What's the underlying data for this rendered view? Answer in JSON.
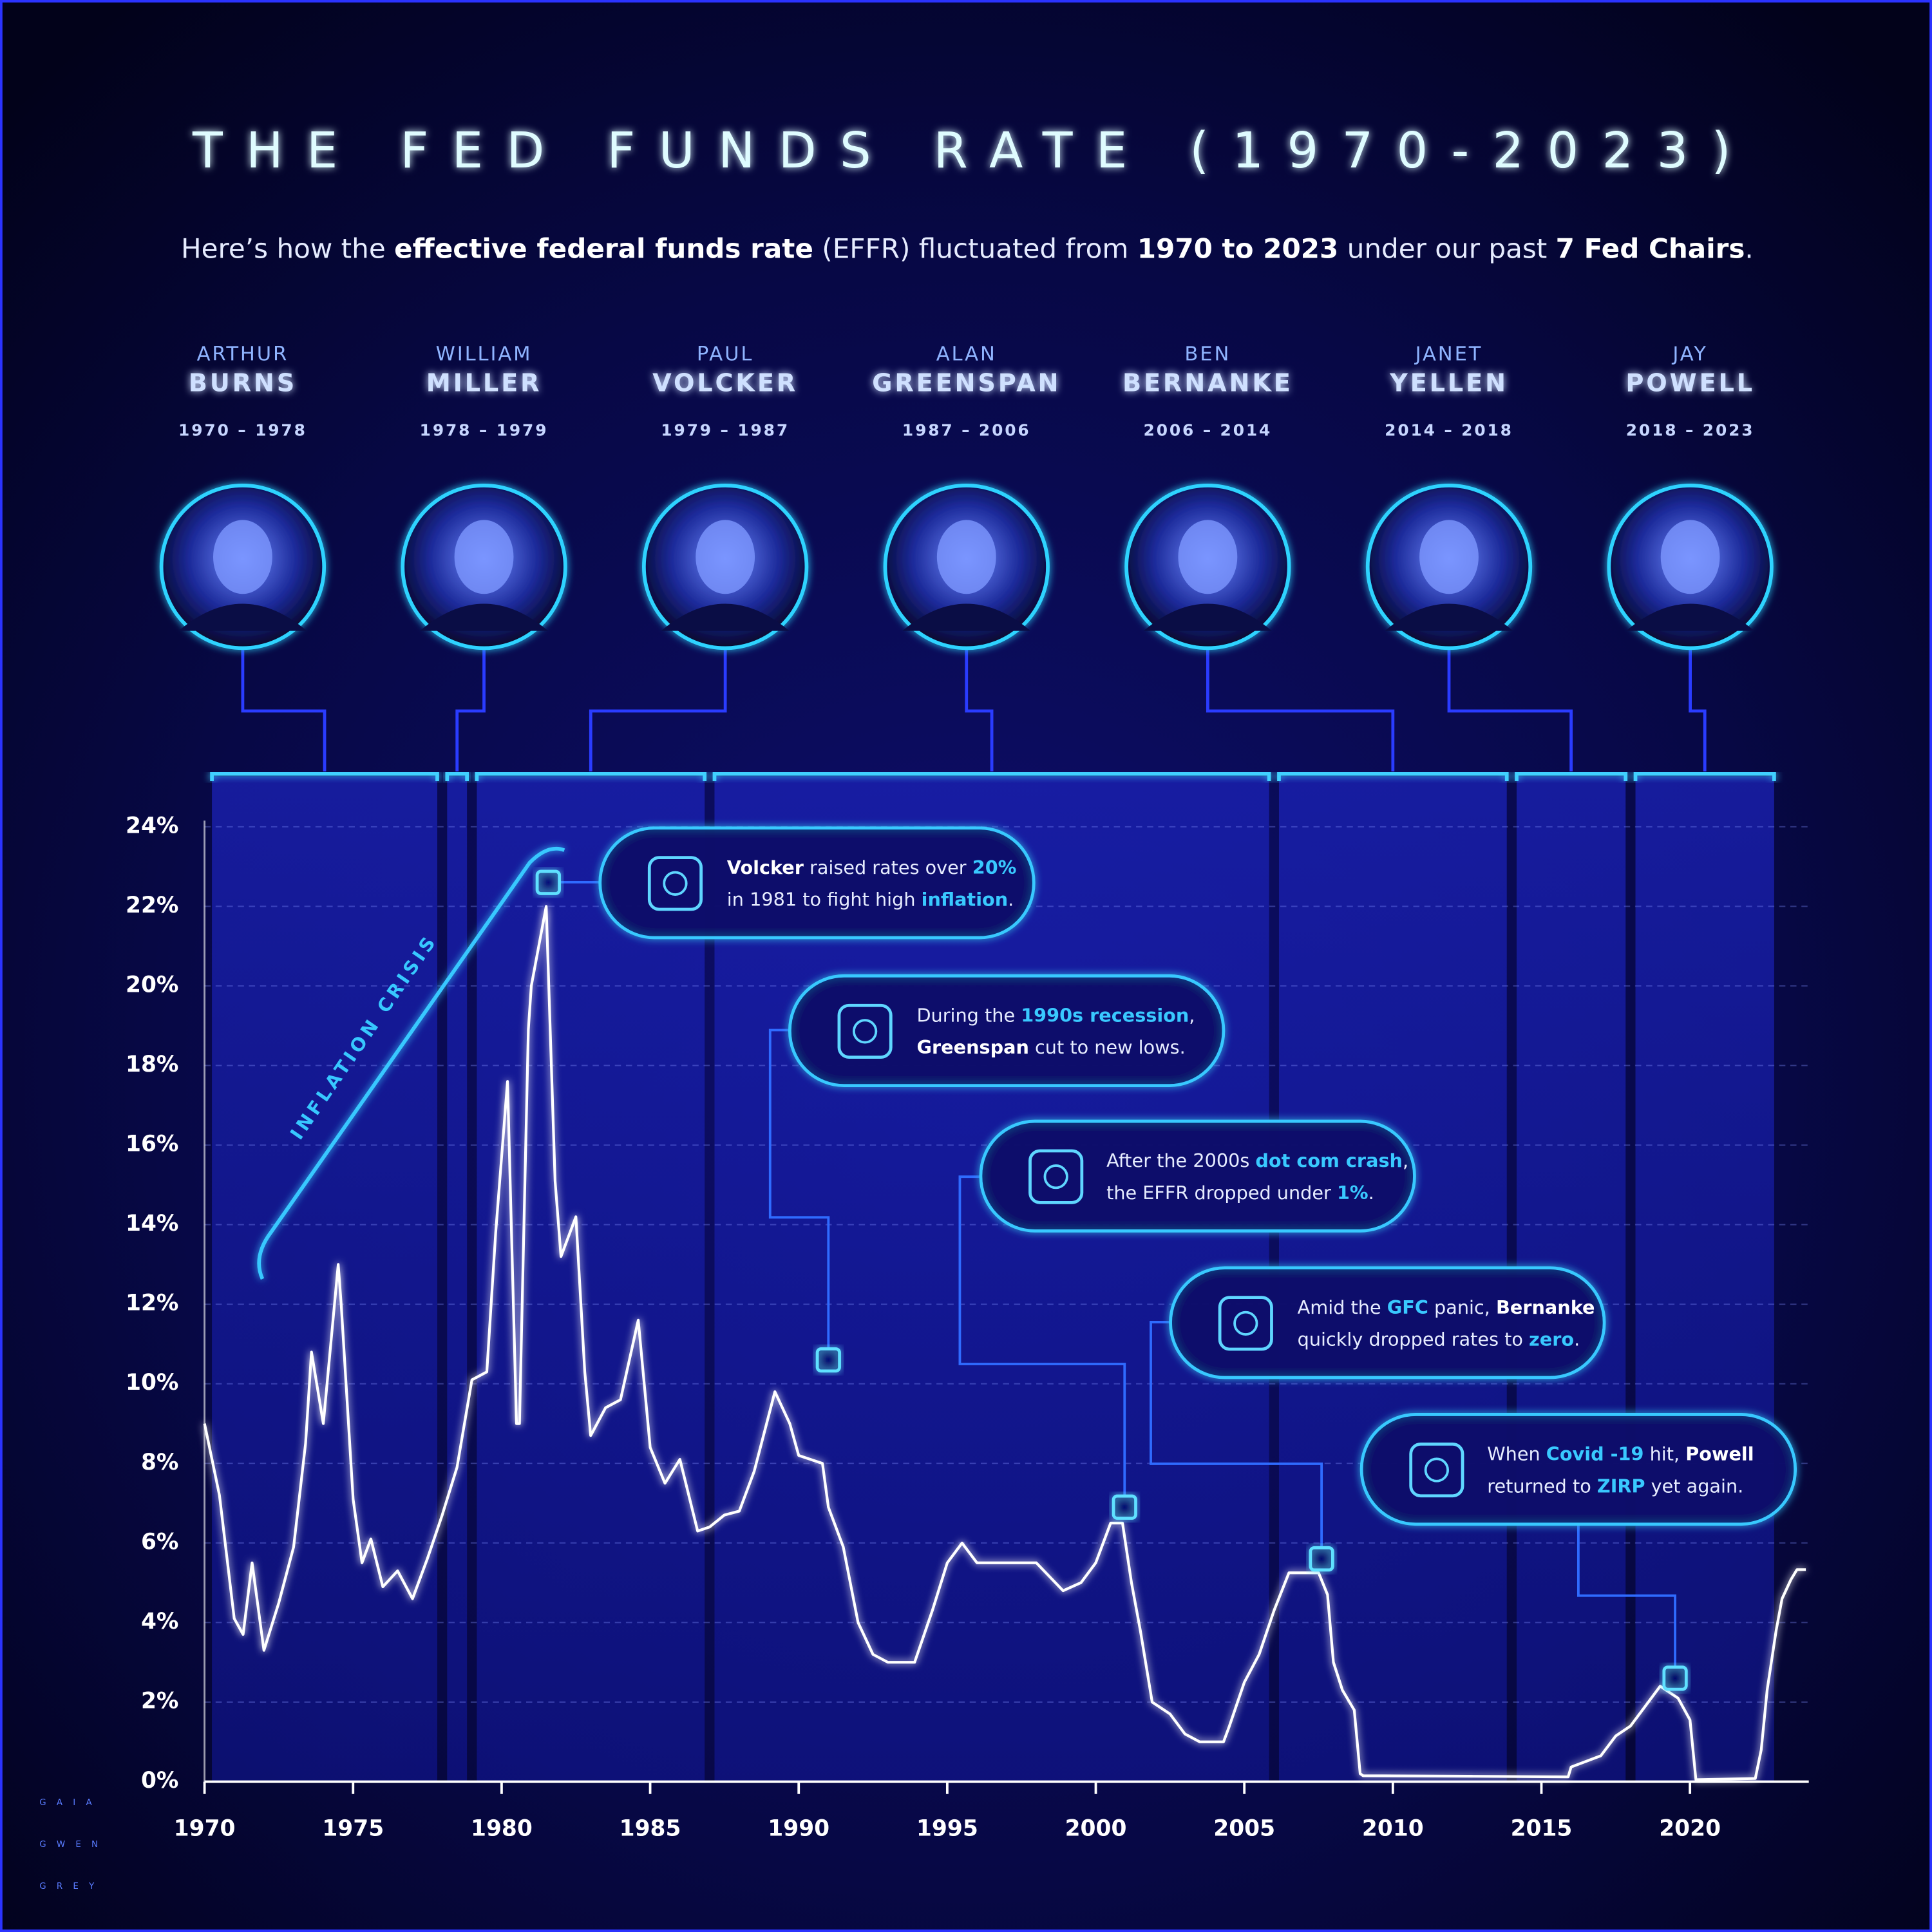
{
  "chart_data": {
    "type": "line",
    "title": "THE FED FUNDS RATE (1970-2023)",
    "subtitle": [
      {
        "text": "Here’s how the "
      },
      {
        "text": "effective federal funds rate",
        "style": "bold"
      },
      {
        "text": " (EFFR) fluctuated from "
      },
      {
        "text": "1970 to 2023",
        "style": "bold"
      },
      {
        "text": " under our past "
      },
      {
        "text": "7 Fed Chairs",
        "style": "bold"
      },
      {
        "text": "."
      }
    ],
    "chairs": [
      {
        "first": "ARTHUR",
        "last": "BURNS",
        "years": "1970 – 1978"
      },
      {
        "first": "WILLIAM",
        "last": "MILLER",
        "years": "1978 – 1979"
      },
      {
        "first": "PAUL",
        "last": "VOLCKER",
        "years": "1979 – 1987"
      },
      {
        "first": "ALAN",
        "last": "GREENSPAN",
        "years": "1987 – 2006"
      },
      {
        "first": "BEN",
        "last": "BERNANKE",
        "years": "2006 – 2014"
      },
      {
        "first": "JANET",
        "last": "YELLEN",
        "years": "2014 – 2018"
      },
      {
        "first": "JAY",
        "last": "POWELL",
        "years": "2018 – 2023"
      }
    ],
    "annotations": [
      {
        "x": 1981.57,
        "y": 22.6,
        "lines": [
          [
            {
              "text": "Volcker",
              "style": "bold"
            },
            {
              "text": " raised rates over "
            },
            {
              "text": "20%",
              "style": "accent"
            }
          ],
          [
            {
              "text": "in 1981 to fight high "
            },
            {
              "text": "inflation",
              "style": "accent"
            },
            {
              "text": "."
            }
          ]
        ]
      },
      {
        "x": 1991.0,
        "y": 10.6,
        "lines": [
          [
            {
              "text": "During the "
            },
            {
              "text": "1990s recession",
              "style": "accent"
            },
            {
              "text": ","
            }
          ],
          [
            {
              "text": "Greenspan",
              "style": "bold"
            },
            {
              "text": " cut to new lows."
            }
          ]
        ]
      },
      {
        "x": 2000.97,
        "y": 6.9,
        "lines": [
          [
            {
              "text": "After the 2000s "
            },
            {
              "text": "dot com crash",
              "style": "accent"
            },
            {
              "text": ","
            }
          ],
          [
            {
              "text": "the EFFR dropped under "
            },
            {
              "text": "1%",
              "style": "accent"
            },
            {
              "text": "."
            }
          ]
        ]
      },
      {
        "x": 2007.6,
        "y": 5.6,
        "lines": [
          [
            {
              "text": "Amid the "
            },
            {
              "text": "GFC",
              "style": "accent"
            },
            {
              "text": " panic, "
            },
            {
              "text": "Bernanke",
              "style": "bold"
            }
          ],
          [
            {
              "text": "quickly dropped rates to "
            },
            {
              "text": "zero",
              "style": "accent"
            },
            {
              "text": "."
            }
          ]
        ]
      },
      {
        "x": 2019.5,
        "y": 2.6,
        "lines": [
          [
            {
              "text": "When "
            },
            {
              "text": "Covid -19",
              "style": "accent"
            },
            {
              "text": " hit, "
            },
            {
              "text": "Powell",
              "style": "bold"
            }
          ],
          [
            {
              "text": "returned to "
            },
            {
              "text": "ZIRP",
              "style": "accent"
            },
            {
              "text": " yet again."
            }
          ]
        ]
      }
    ],
    "period_label": "INFLATION CRISIS",
    "credit": [
      "GAIA",
      "GWEN",
      "GREY"
    ],
    "color": "#ffffff",
    "grid": true,
    "xlim": [
      1970,
      2024
    ],
    "xticks": [
      1970,
      1975,
      1980,
      1985,
      1990,
      1995,
      2000,
      2005,
      2010,
      2015,
      2020
    ],
    "ylim": [
      0,
      24
    ],
    "yticks": [
      {
        "value": 0,
        "label": "0%"
      },
      {
        "value": 2,
        "label": "2%"
      },
      {
        "value": 4,
        "label": "4%"
      },
      {
        "value": 6,
        "label": "6%"
      },
      {
        "value": 8,
        "label": "8%"
      },
      {
        "value": 10,
        "label": "10%"
      },
      {
        "value": 12,
        "label": "12%"
      },
      {
        "value": 14,
        "label": "14%"
      },
      {
        "value": 16,
        "label": "16%"
      },
      {
        "value": 18,
        "label": "18%"
      },
      {
        "value": 20,
        "label": "20%"
      },
      {
        "value": 22,
        "label": "22%"
      },
      {
        "value": 24,
        "label": "24%"
      }
    ],
    "x": [
      1970.0,
      1970.5,
      1971.0,
      1971.3,
      1971.6,
      1972.0,
      1972.5,
      1973.0,
      1973.4,
      1973.6,
      1974.0,
      1974.5,
      1974.6,
      1975.0,
      1975.3,
      1975.6,
      1976.0,
      1976.5,
      1977.0,
      1977.5,
      1978.0,
      1978.5,
      1979.0,
      1979.5,
      1979.8,
      1980.2,
      1980.5,
      1980.6,
      1980.9,
      1981.0,
      1981.5,
      1981.8,
      1982.0,
      1982.5,
      1982.8,
      1983.0,
      1983.5,
      1984.0,
      1984.6,
      1985.0,
      1985.5,
      1986.0,
      1986.6,
      1987.0,
      1987.5,
      1988.0,
      1988.5,
      1989.2,
      1989.7,
      1990.0,
      1990.8,
      1991.0,
      1991.5,
      1992.0,
      1992.5,
      1993.0,
      1993.9,
      1994.5,
      1995.0,
      1995.5,
      1996.0,
      1997.0,
      1998.0,
      1998.9,
      1999.5,
      2000.0,
      2000.5,
      2000.9,
      2001.2,
      2001.5,
      2001.9,
      2002.5,
      2003.0,
      2003.5,
      2004.3,
      2004.5,
      2005.0,
      2005.5,
      2006.0,
      2006.5,
      2007.5,
      2007.8,
      2008.0,
      2008.3,
      2008.7,
      2008.9,
      2009.0,
      2012.0,
      2015.9,
      2016.0,
      2017.0,
      2017.5,
      2018.0,
      2018.5,
      2019.0,
      2019.6,
      2020.0,
      2020.2,
      2022.2,
      2022.4,
      2022.6,
      2022.9,
      2023.1,
      2023.4,
      2023.6,
      2023.9
    ],
    "values": [
      9.0,
      7.2,
      4.1,
      3.7,
      5.5,
      3.3,
      4.5,
      5.9,
      8.5,
      10.8,
      9.0,
      13.0,
      12.0,
      7.1,
      5.5,
      6.1,
      4.9,
      5.3,
      4.6,
      5.6,
      6.7,
      7.9,
      10.1,
      10.3,
      13.8,
      17.6,
      9.0,
      9.0,
      18.9,
      20.0,
      22.0,
      15.1,
      13.2,
      14.2,
      10.3,
      8.7,
      9.4,
      9.6,
      11.6,
      8.4,
      7.5,
      8.1,
      6.3,
      6.4,
      6.7,
      6.8,
      7.8,
      9.8,
      9.0,
      8.2,
      8.0,
      6.9,
      5.9,
      4.0,
      3.2,
      3.0,
      3.0,
      4.3,
      5.5,
      6.0,
      5.5,
      5.5,
      5.5,
      4.8,
      5.0,
      5.5,
      6.5,
      6.5,
      5.0,
      3.8,
      2.0,
      1.7,
      1.2,
      1.0,
      1.0,
      1.4,
      2.5,
      3.2,
      4.3,
      5.25,
      5.25,
      4.7,
      3.0,
      2.3,
      1.8,
      0.2,
      0.15,
      0.14,
      0.12,
      0.37,
      0.65,
      1.15,
      1.4,
      1.9,
      2.4,
      2.1,
      1.55,
      0.05,
      0.08,
      0.8,
      2.3,
      3.8,
      4.6,
      5.08,
      5.33,
      5.33
    ]
  }
}
